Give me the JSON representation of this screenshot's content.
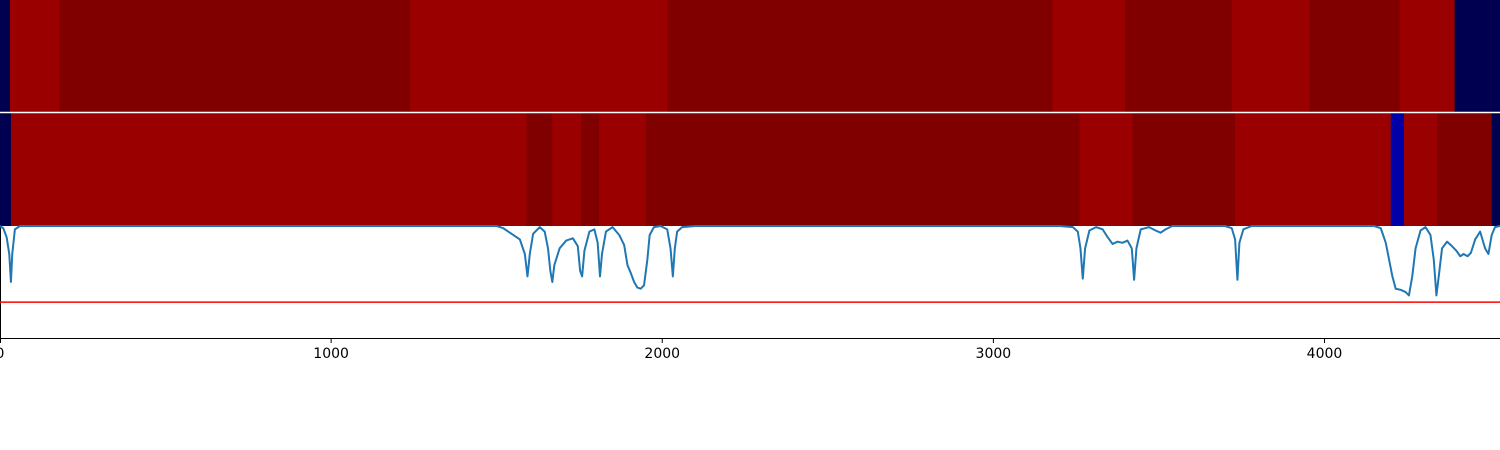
{
  "colors": {
    "dark_red": "#800000",
    "red": "#9b0000",
    "navy": "#000050",
    "blue": "#0000a8",
    "line": "#1f77b4",
    "threshold": "#ff0000"
  },
  "chart_data": {
    "type": "heatmap",
    "title": "",
    "xlabel": "",
    "ylabel": "",
    "xlim": [
      0,
      4530
    ],
    "ylim": [
      0,
      1
    ],
    "grid": false,
    "x_ticks": [
      {
        "value": 0,
        "label": "0"
      },
      {
        "value": 1000,
        "label": "1000"
      },
      {
        "value": 2000,
        "label": "2000"
      },
      {
        "value": 3000,
        "label": "3000"
      },
      {
        "value": 4000,
        "label": "4000"
      }
    ],
    "strip_top": [
      {
        "start": 0,
        "end": 30,
        "color": "navy"
      },
      {
        "start": 30,
        "end": 178,
        "color": "red"
      },
      {
        "start": 178,
        "end": 1238,
        "color": "dark_red"
      },
      {
        "start": 1238,
        "end": 2015,
        "color": "red"
      },
      {
        "start": 2015,
        "end": 3178,
        "color": "dark_red"
      },
      {
        "start": 3178,
        "end": 3398,
        "color": "red"
      },
      {
        "start": 3398,
        "end": 3720,
        "color": "dark_red"
      },
      {
        "start": 3720,
        "end": 3955,
        "color": "red"
      },
      {
        "start": 3955,
        "end": 4227,
        "color": "dark_red"
      },
      {
        "start": 4227,
        "end": 4393,
        "color": "red"
      },
      {
        "start": 4393,
        "end": 4530,
        "color": "navy"
      }
    ],
    "strip_bottom": [
      {
        "start": 0,
        "end": 33,
        "color": "navy"
      },
      {
        "start": 33,
        "end": 1590,
        "color": "red"
      },
      {
        "start": 1590,
        "end": 1668,
        "color": "dark_red"
      },
      {
        "start": 1668,
        "end": 1755,
        "color": "red"
      },
      {
        "start": 1755,
        "end": 1810,
        "color": "dark_red"
      },
      {
        "start": 1810,
        "end": 1950,
        "color": "red"
      },
      {
        "start": 1950,
        "end": 3260,
        "color": "dark_red"
      },
      {
        "start": 3260,
        "end": 3420,
        "color": "red"
      },
      {
        "start": 3420,
        "end": 3730,
        "color": "dark_red"
      },
      {
        "start": 3730,
        "end": 4200,
        "color": "red"
      },
      {
        "start": 4200,
        "end": 4240,
        "color": "blue"
      },
      {
        "start": 4240,
        "end": 4340,
        "color": "red"
      },
      {
        "start": 4340,
        "end": 4505,
        "color": "dark_red"
      },
      {
        "start": 4505,
        "end": 4530,
        "color": "navy"
      }
    ],
    "threshold": 0.32,
    "series": [
      {
        "points": [
          [
            0,
            1.0
          ],
          [
            10,
            0.98
          ],
          [
            20,
            0.9
          ],
          [
            28,
            0.75
          ],
          [
            33,
            0.5
          ],
          [
            37,
            0.75
          ],
          [
            45,
            0.97
          ],
          [
            60,
            1.0
          ],
          [
            1500,
            1.0
          ],
          [
            1520,
            0.98
          ],
          [
            1545,
            0.93
          ],
          [
            1570,
            0.88
          ],
          [
            1585,
            0.75
          ],
          [
            1593,
            0.55
          ],
          [
            1600,
            0.75
          ],
          [
            1610,
            0.93
          ],
          [
            1630,
            0.99
          ],
          [
            1645,
            0.95
          ],
          [
            1655,
            0.8
          ],
          [
            1662,
            0.6
          ],
          [
            1668,
            0.5
          ],
          [
            1674,
            0.65
          ],
          [
            1690,
            0.8
          ],
          [
            1710,
            0.87
          ],
          [
            1730,
            0.89
          ],
          [
            1745,
            0.82
          ],
          [
            1752,
            0.6
          ],
          [
            1758,
            0.55
          ],
          [
            1765,
            0.78
          ],
          [
            1780,
            0.95
          ],
          [
            1795,
            0.97
          ],
          [
            1805,
            0.85
          ],
          [
            1812,
            0.55
          ],
          [
            1818,
            0.75
          ],
          [
            1830,
            0.95
          ],
          [
            1850,
            0.99
          ],
          [
            1870,
            0.92
          ],
          [
            1885,
            0.83
          ],
          [
            1895,
            0.65
          ],
          [
            1905,
            0.58
          ],
          [
            1915,
            0.5
          ],
          [
            1925,
            0.45
          ],
          [
            1935,
            0.44
          ],
          [
            1945,
            0.47
          ],
          [
            1955,
            0.7
          ],
          [
            1962,
            0.92
          ],
          [
            1975,
            0.99
          ],
          [
            1995,
            1.0
          ],
          [
            2015,
            0.97
          ],
          [
            2025,
            0.8
          ],
          [
            2032,
            0.55
          ],
          [
            2038,
            0.8
          ],
          [
            2045,
            0.95
          ],
          [
            2060,
            0.99
          ],
          [
            2100,
            1.0
          ],
          [
            3200,
            1.0
          ],
          [
            3240,
            0.99
          ],
          [
            3255,
            0.95
          ],
          [
            3263,
            0.8
          ],
          [
            3270,
            0.53
          ],
          [
            3277,
            0.8
          ],
          [
            3290,
            0.96
          ],
          [
            3310,
            0.99
          ],
          [
            3330,
            0.97
          ],
          [
            3345,
            0.9
          ],
          [
            3360,
            0.84
          ],
          [
            3375,
            0.86
          ],
          [
            3390,
            0.85
          ],
          [
            3405,
            0.87
          ],
          [
            3418,
            0.8
          ],
          [
            3425,
            0.52
          ],
          [
            3432,
            0.8
          ],
          [
            3445,
            0.97
          ],
          [
            3470,
            0.99
          ],
          [
            3490,
            0.96
          ],
          [
            3505,
            0.94
          ],
          [
            3520,
            0.97
          ],
          [
            3540,
            1.0
          ],
          [
            3700,
            1.0
          ],
          [
            3720,
            0.98
          ],
          [
            3730,
            0.88
          ],
          [
            3737,
            0.52
          ],
          [
            3743,
            0.85
          ],
          [
            3755,
            0.97
          ],
          [
            3780,
            1.0
          ],
          [
            4150,
            1.0
          ],
          [
            4170,
            0.98
          ],
          [
            4185,
            0.85
          ],
          [
            4195,
            0.7
          ],
          [
            4205,
            0.55
          ],
          [
            4215,
            0.44
          ],
          [
            4230,
            0.43
          ],
          [
            4245,
            0.41
          ],
          [
            4255,
            0.38
          ],
          [
            4265,
            0.55
          ],
          [
            4275,
            0.8
          ],
          [
            4290,
            0.96
          ],
          [
            4305,
            0.99
          ],
          [
            4320,
            0.92
          ],
          [
            4330,
            0.7
          ],
          [
            4338,
            0.38
          ],
          [
            4345,
            0.55
          ],
          [
            4355,
            0.8
          ],
          [
            4370,
            0.86
          ],
          [
            4385,
            0.82
          ],
          [
            4398,
            0.78
          ],
          [
            4410,
            0.73
          ],
          [
            4420,
            0.75
          ],
          [
            4432,
            0.73
          ],
          [
            4442,
            0.76
          ],
          [
            4455,
            0.88
          ],
          [
            4470,
            0.95
          ],
          [
            4485,
            0.8
          ],
          [
            4495,
            0.75
          ],
          [
            4505,
            0.92
          ],
          [
            4515,
            0.99
          ],
          [
            4530,
            1.0
          ]
        ]
      }
    ]
  }
}
